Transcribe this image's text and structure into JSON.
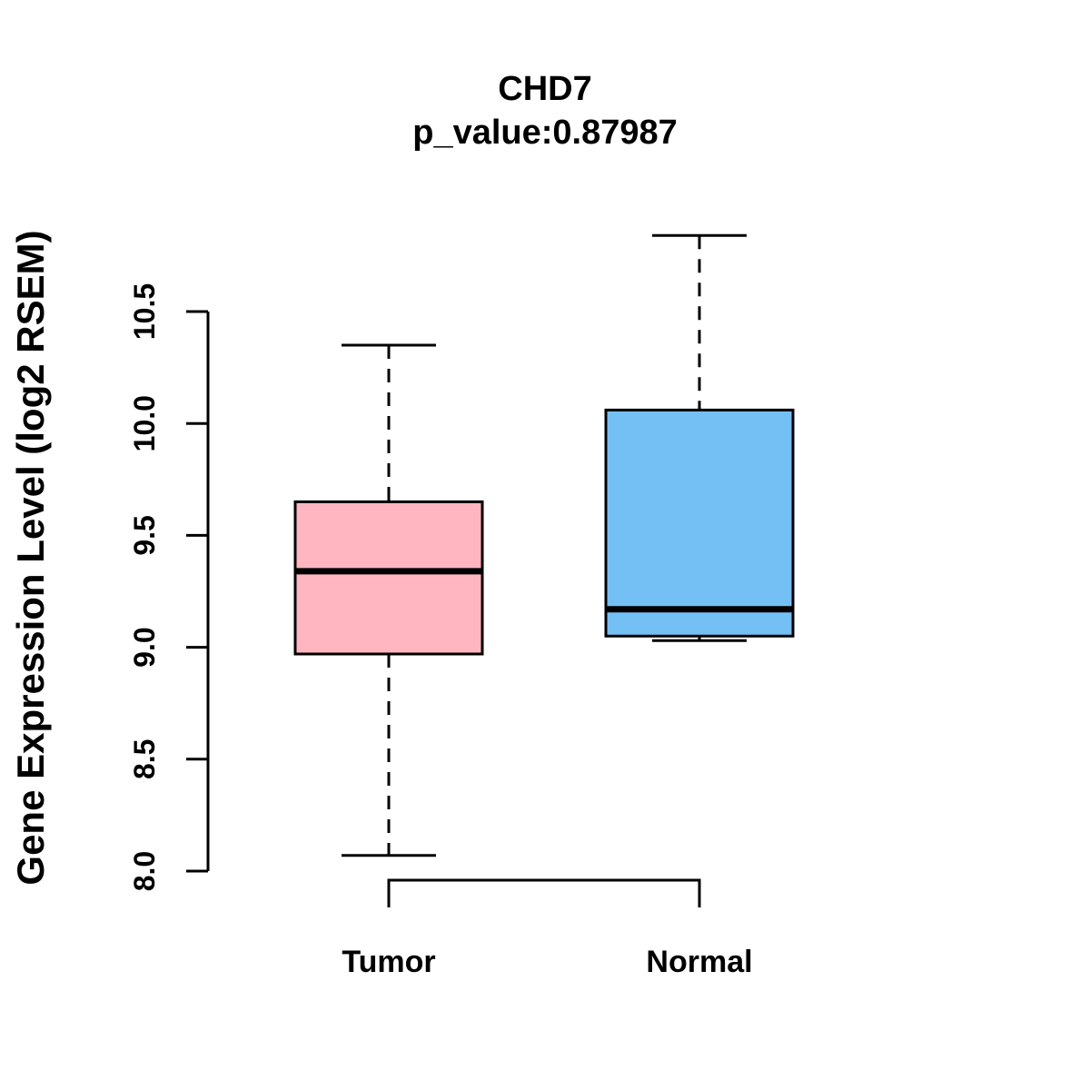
{
  "figure": {
    "background": "#ffffff",
    "stroke_color": "#000000"
  },
  "chart_data": {
    "type": "boxplot",
    "title": "CHD7",
    "subtitle": "p_value:0.87987",
    "xlabel": "",
    "ylabel": "Gene Expression Level (log2 RSEM)",
    "ylim": [
      8.0,
      10.5
    ],
    "yticks": [
      {
        "value": 8.0,
        "label": "8.0"
      },
      {
        "value": 8.5,
        "label": "8.5"
      },
      {
        "value": 9.0,
        "label": "9.0"
      },
      {
        "value": 9.5,
        "label": "9.5"
      },
      {
        "value": 10.0,
        "label": "10.0"
      },
      {
        "value": 10.5,
        "label": "10.5"
      }
    ],
    "grid": false,
    "legend": null,
    "categories": [
      "Tumor",
      "Normal"
    ],
    "series": [
      {
        "name": "Tumor",
        "fill": "#FFB6C1",
        "whisker_low": 8.07,
        "q1": 8.97,
        "median": 9.34,
        "q3": 9.65,
        "whisker_high": 10.35
      },
      {
        "name": "Normal",
        "fill": "#74C0F4",
        "whisker_low": 9.03,
        "q1": 9.05,
        "median": 9.17,
        "q3": 10.06,
        "whisker_high": 10.84
      }
    ]
  }
}
